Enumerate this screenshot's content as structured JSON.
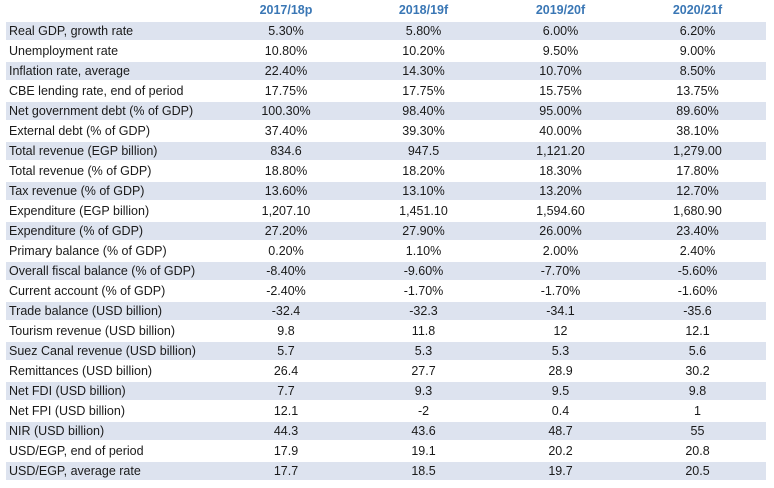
{
  "table": {
    "columns": [
      "",
      "2017/18p",
      "2018/19f",
      "2019/20f",
      "2020/21f"
    ],
    "rows": [
      [
        "Real GDP, growth rate",
        "5.30%",
        "5.80%",
        "6.00%",
        "6.20%"
      ],
      [
        "Unemployment rate",
        "10.80%",
        "10.20%",
        "9.50%",
        "9.00%"
      ],
      [
        "Inflation rate, average",
        "22.40%",
        "14.30%",
        "10.70%",
        "8.50%"
      ],
      [
        "CBE lending rate, end of period",
        "17.75%",
        "17.75%",
        "15.75%",
        "13.75%"
      ],
      [
        "Net government debt (% of GDP)",
        "100.30%",
        "98.40%",
        "95.00%",
        "89.60%"
      ],
      [
        "External debt (% of GDP)",
        "37.40%",
        "39.30%",
        "40.00%",
        "38.10%"
      ],
      [
        "Total revenue (EGP billion)",
        "834.6",
        "947.5",
        "1,121.20",
        "1,279.00"
      ],
      [
        "Total revenue (% of GDP)",
        "18.80%",
        "18.20%",
        "18.30%",
        "17.80%"
      ],
      [
        "Tax revenue (% of GDP)",
        "13.60%",
        "13.10%",
        "13.20%",
        "12.70%"
      ],
      [
        "Expenditure (EGP billion)",
        "1,207.10",
        "1,451.10",
        "1,594.60",
        "1,680.90"
      ],
      [
        "Expenditure (% of GDP)",
        "27.20%",
        "27.90%",
        "26.00%",
        "23.40%"
      ],
      [
        "Primary balance (% of GDP)",
        "0.20%",
        "1.10%",
        "2.00%",
        "2.40%"
      ],
      [
        "Overall fiscal balance (% of GDP)",
        "-8.40%",
        "-9.60%",
        "-7.70%",
        "-5.60%"
      ],
      [
        "Current account (% of GDP)",
        "-2.40%",
        "-1.70%",
        "-1.70%",
        "-1.60%"
      ],
      [
        "Trade balance (USD billion)",
        "-32.4",
        "-32.3",
        "-34.1",
        "-35.6"
      ],
      [
        "Tourism revenue (USD billion)",
        "9.8",
        "11.8",
        "12",
        "12.1"
      ],
      [
        "Suez Canal revenue (USD billion)",
        "5.7",
        "5.3",
        "5.3",
        "5.6"
      ],
      [
        "Remittances (USD billion)",
        "26.4",
        "27.7",
        "28.9",
        "30.2"
      ],
      [
        "Net FDI (USD billion)",
        "7.7",
        "9.3",
        "9.5",
        "9.8"
      ],
      [
        "Net FPI (USD billion)",
        "12.1",
        "-2",
        "0.4",
        "1"
      ],
      [
        "NIR (USD billion)",
        "44.3",
        "43.6",
        "48.7",
        "55"
      ],
      [
        "USD/EGP, end of period",
        "17.9",
        "19.1",
        "20.2",
        "20.8"
      ],
      [
        "USD/EGP, average rate",
        "17.7",
        "18.5",
        "19.7",
        "20.5"
      ]
    ]
  },
  "colors": {
    "header_text": "#3a77b5",
    "row_shade": "#dde3ef",
    "row_plain": "#ffffff"
  }
}
